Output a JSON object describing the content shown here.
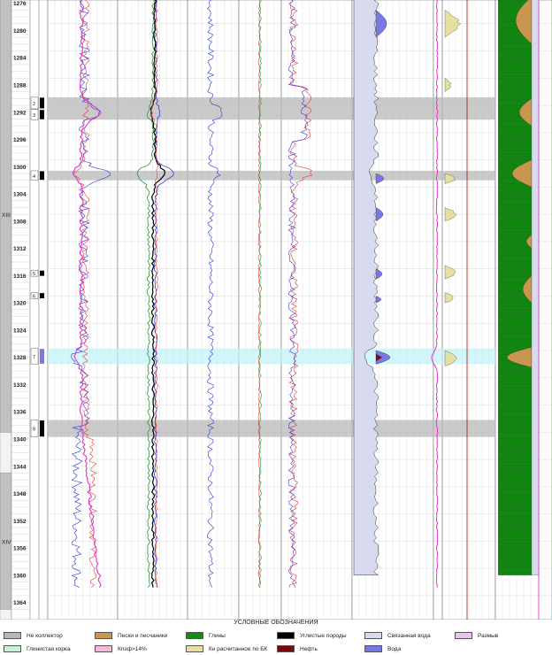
{
  "chart_data": {
    "type": "well-log",
    "depth_range": [
      1275,
      1366
    ],
    "depth_ticks": [
      1276,
      1280,
      1284,
      1288,
      1292,
      1296,
      1300,
      1304,
      1308,
      1312,
      1316,
      1320,
      1324,
      1328,
      1332,
      1336,
      1340,
      1344,
      1348,
      1352,
      1356,
      1360,
      1364
    ],
    "stratigraphy": [
      {
        "label": "XIII",
        "top": 1275,
        "bottom": 1339
      },
      {
        "label": "XIV",
        "top": 1345,
        "bottom": 1365
      }
    ],
    "layers": [
      {
        "num": "2",
        "top": 1289.8,
        "bottom": 1291.5,
        "type": "neutral"
      },
      {
        "num": "3",
        "top": 1291.6,
        "bottom": 1293.1,
        "type": "neutral"
      },
      {
        "num": "4",
        "top": 1300.6,
        "bottom": 1302.0,
        "type": "neutral"
      },
      {
        "num": "5",
        "top": 1315.2,
        "bottom": 1316.1,
        "type": "neutral"
      },
      {
        "num": "6",
        "top": 1318.5,
        "bottom": 1319.4,
        "type": "neutral"
      },
      {
        "num": "7",
        "top": 1326.7,
        "bottom": 1329.0,
        "type": "water"
      },
      {
        "num": "8",
        "top": 1337.2,
        "bottom": 1339.7,
        "type": "neutral"
      }
    ],
    "highlight_bands": [
      {
        "top": 1289.8,
        "bottom": 1293.1,
        "kind": "non-reservoir"
      },
      {
        "top": 1300.6,
        "bottom": 1302.0,
        "kind": "non-reservoir"
      },
      {
        "top": 1326.7,
        "bottom": 1329.0,
        "kind": "water"
      },
      {
        "top": 1337.2,
        "bottom": 1339.7,
        "kind": "non-reservoir"
      }
    ]
  },
  "colors": {
    "non_reservoir": "#b8b8b8",
    "sand": "#c8964e",
    "clay": "#148a14",
    "coal": "#000000",
    "bound_water": "#d8daf0",
    "washout": "#e9c4ec",
    "mudcake": "#c8f2d6",
    "kpor": "#f7b8d8",
    "kn_bk": "#e5dfa0",
    "oil": "#7a0a0a",
    "water": "#7878e8",
    "water_band": "#bff2f6"
  },
  "legend": {
    "title": "УСЛОВНЫЕ ОБОЗНАЧЕНИЯ",
    "items": [
      {
        "label": "Не коллектор",
        "color": "#b8b8b8"
      },
      {
        "label": "Пески и песчаники",
        "color": "#c8964e"
      },
      {
        "label": "Глины",
        "color": "#148a14"
      },
      {
        "label": "Углистые породы",
        "color": "#000000"
      },
      {
        "label": "Связанная вода",
        "color": "#d8daf0"
      },
      {
        "label": "Размыв",
        "color": "#e9c4ec"
      },
      {
        "label": "Глинистая корка",
        "color": "#c8f2d6"
      },
      {
        "label": "Кпэф>14%",
        "color": "#f7b8d8"
      },
      {
        "label": "Кн расчитанное по БК",
        "color": "#e5dfa0"
      },
      {
        "label": "Нефть",
        "color": "#7a0a0a"
      },
      {
        "label": "Вода",
        "color": "#7878e8"
      }
    ]
  }
}
